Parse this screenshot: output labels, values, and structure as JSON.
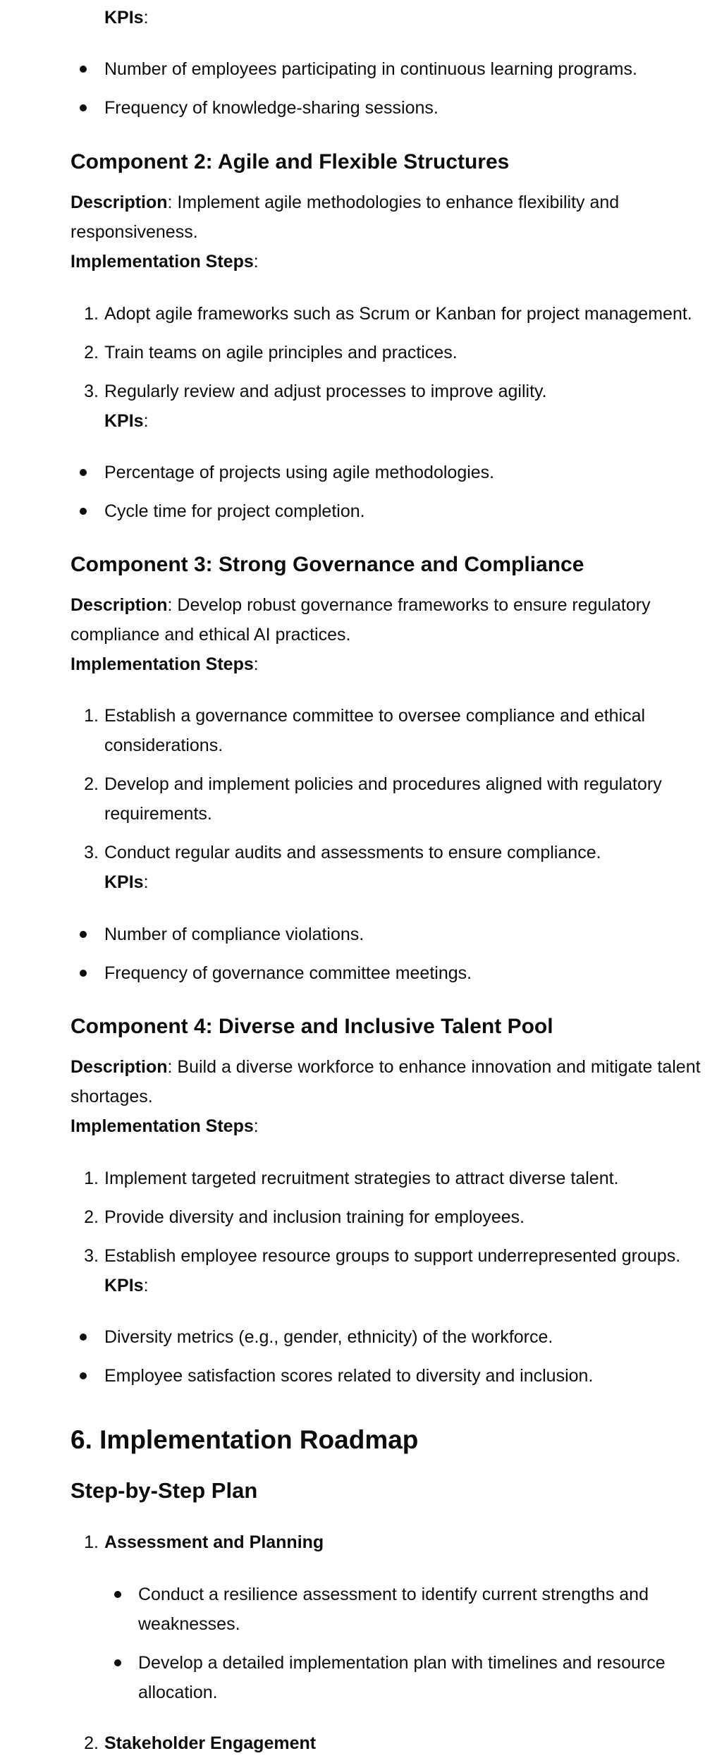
{
  "labels": {
    "kpis": "KPIs",
    "description": "Description",
    "implementation_steps": "Implementation Steps",
    "colon": ":"
  },
  "intro": {
    "kpis": [
      "Number of employees participating in continuous learning programs.",
      "Frequency of knowledge-sharing sessions."
    ]
  },
  "component2": {
    "title": "Component 2: Agile and Flexible Structures",
    "description_line1": ": Implement agile methodologies to enhance flexibility and",
    "description_line2": "responsiveness.",
    "steps": [
      "Adopt agile frameworks such as Scrum or Kanban for project management.",
      "Train teams on agile principles and practices.",
      "Regularly review and adjust processes to improve agility."
    ],
    "kpis": [
      "Percentage of projects using agile methodologies.",
      "Cycle time for project completion."
    ]
  },
  "component3": {
    "title": "Component 3: Strong Governance and Compliance",
    "description_line1": ": Develop robust governance frameworks to ensure regulatory",
    "description_line2": "compliance and ethical AI practices.",
    "steps": [
      [
        "Establish a governance committee to oversee compliance and ethical",
        "considerations."
      ],
      [
        "Develop and implement policies and procedures aligned with regulatory",
        "requirements."
      ],
      [
        "Conduct regular audits and assessments to ensure compliance."
      ]
    ],
    "kpis": [
      "Number of compliance violations.",
      "Frequency of governance committee meetings."
    ]
  },
  "component4": {
    "title": "Component 4: Diverse and Inclusive Talent Pool",
    "description_line1": ": Build a diverse workforce to enhance innovation and mitigate talent",
    "description_line2": "shortages.",
    "steps": [
      "Implement targeted recruitment strategies to attract diverse talent.",
      "Provide diversity and inclusion training for employees.",
      "Establish employee resource groups to support underrepresented groups."
    ],
    "kpis": [
      "Diversity metrics (e.g., gender, ethnicity) of the workforce.",
      "Employee satisfaction scores related to diversity and inclusion."
    ]
  },
  "section6": {
    "title": "6. Implementation Roadmap",
    "subtitle": "Step-by-Step Plan",
    "phases": [
      {
        "title": "Assessment and Planning",
        "items": [
          [
            "Conduct a resilience assessment to identify current strengths and",
            "weaknesses."
          ],
          [
            "Develop a detailed implementation plan with timelines and resource",
            "allocation."
          ]
        ]
      },
      {
        "title": "Stakeholder Engagement"
      }
    ]
  },
  "numbers": [
    "1.",
    "2.",
    "3."
  ]
}
